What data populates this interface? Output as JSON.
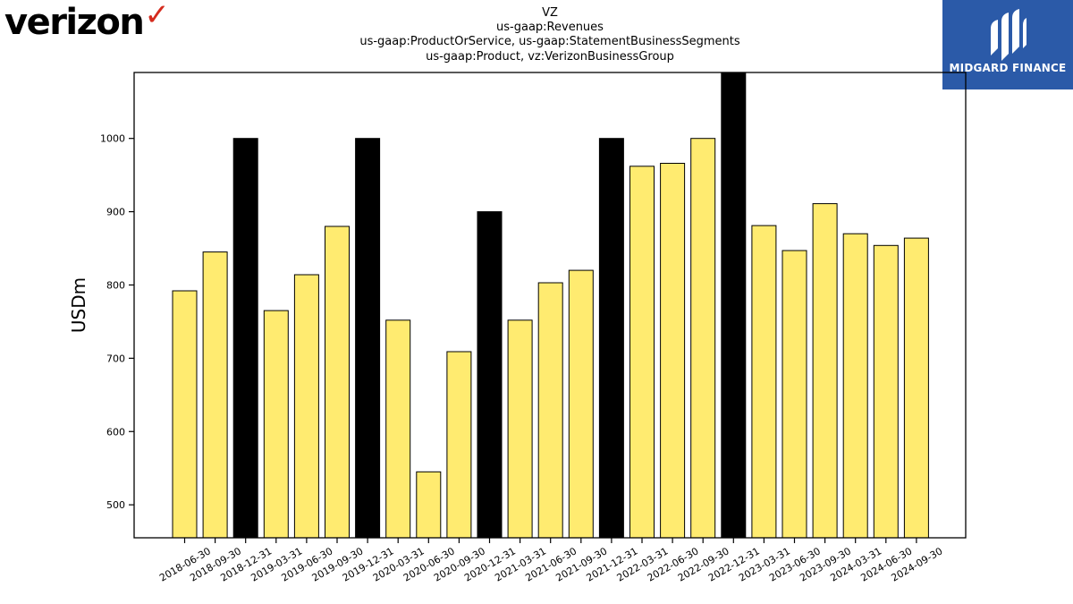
{
  "brand": {
    "left_logo_text": "verizon",
    "left_logo_mark": "checkmark-icon",
    "left_logo_accent": "#d52b1e",
    "right_logo_text": "MIDGARD FINANCE",
    "right_logo_bg": "#2b5aa8"
  },
  "chart_data": {
    "type": "bar",
    "title_lines": [
      "VZ",
      "us-gaap:Revenues",
      "us-gaap:ProductOrService, us-gaap:StatementBusinessSegments",
      "us-gaap:Product, vz:VerizonBusinessGroup"
    ],
    "xlabel": "",
    "ylabel": "USDm",
    "ylim": [
      455,
      1090
    ],
    "yticks": [
      500,
      600,
      700,
      800,
      900,
      1000
    ],
    "grid": false,
    "categories": [
      "2018-06-30",
      "2018-09-30",
      "2018-12-31",
      "2019-03-31",
      "2019-06-30",
      "2019-09-30",
      "2019-12-31",
      "2020-03-31",
      "2020-06-30",
      "2020-09-30",
      "2020-12-31",
      "2021-03-31",
      "2021-06-30",
      "2021-09-30",
      "2021-12-31",
      "2022-03-31",
      "2022-06-30",
      "2022-09-30",
      "2022-12-31",
      "2023-03-31",
      "2023-06-30",
      "2023-09-30",
      "2024-03-31",
      "2024-06-30",
      "2024-09-30"
    ],
    "values": [
      792,
      845,
      1000,
      765,
      814,
      880,
      1000,
      752,
      545,
      709,
      900,
      752,
      803,
      820,
      1000,
      962,
      966,
      1000,
      1090,
      881,
      847,
      911,
      870,
      854,
      864
    ],
    "highlight": [
      false,
      false,
      true,
      false,
      false,
      false,
      true,
      false,
      false,
      false,
      true,
      false,
      false,
      false,
      true,
      false,
      false,
      false,
      true,
      false,
      false,
      false,
      false,
      false,
      false
    ],
    "colors": {
      "bar": "#ffeb70",
      "highlight": "#000000",
      "edge": "#000000"
    }
  }
}
